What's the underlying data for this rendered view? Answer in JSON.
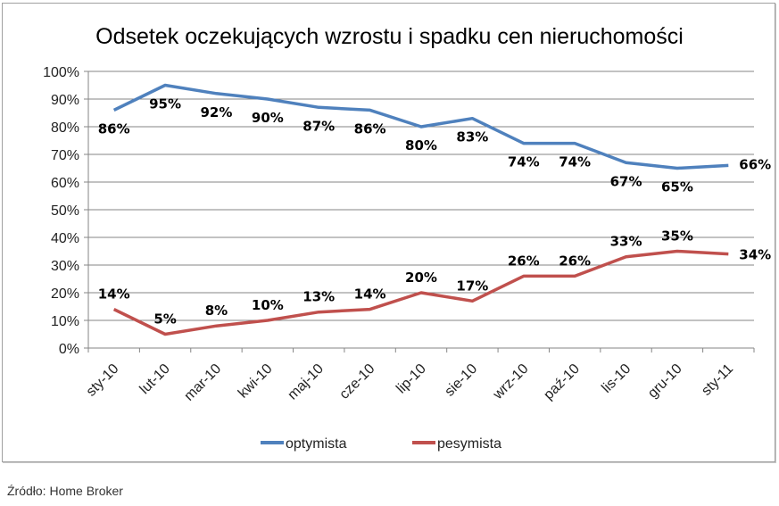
{
  "chart_data": {
    "type": "line",
    "title": "Odsetek oczekujących wzrostu i spadku cen nieruchomości",
    "categories": [
      "sty-10",
      "lut-10",
      "mar-10",
      "kwi-10",
      "maj-10",
      "cze-10",
      "lip-10",
      "sie-10",
      "wrz-10",
      "paź-10",
      "lis-10",
      "gru-10",
      "sty-11"
    ],
    "series": [
      {
        "name": "optymista",
        "color": "#4f81bd",
        "values": [
          86,
          95,
          92,
          90,
          87,
          86,
          80,
          83,
          74,
          74,
          67,
          65,
          66
        ],
        "labels": [
          "86%",
          "95%",
          "92%",
          "90%",
          "87%",
          "86%",
          "80%",
          "83%",
          "74%",
          "74%",
          "67%",
          "65%",
          "66%"
        ]
      },
      {
        "name": "pesymista",
        "color": "#c0504d",
        "values": [
          14,
          5,
          8,
          10,
          13,
          14,
          20,
          17,
          26,
          26,
          33,
          35,
          34
        ],
        "labels": [
          "14%",
          "5%",
          "8%",
          "10%",
          "13%",
          "14%",
          "20%",
          "17%",
          "26%",
          "26%",
          "33%",
          "35%",
          "34%"
        ]
      }
    ],
    "ylim": [
      0,
      100
    ],
    "yticks": [
      "0%",
      "10%",
      "20%",
      "30%",
      "40%",
      "50%",
      "60%",
      "70%",
      "80%",
      "90%",
      "100%"
    ],
    "grid": true,
    "legend": "bottom"
  },
  "source": "Źródło: Home Broker"
}
